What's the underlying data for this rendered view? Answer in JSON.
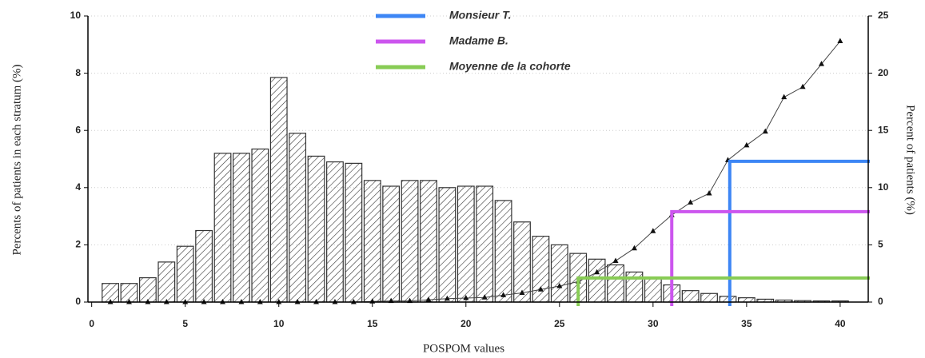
{
  "chart_data": {
    "type": "bar",
    "x_label": "POSPOM values",
    "y_label": "Percents of patients in each stratum (%)",
    "y2_label": "Percent of patients (%)",
    "x": [
      1,
      2,
      3,
      4,
      5,
      6,
      7,
      8,
      9,
      10,
      11,
      12,
      13,
      14,
      15,
      16,
      17,
      18,
      19,
      20,
      21,
      22,
      23,
      24,
      25,
      26,
      27,
      28,
      29,
      30,
      31,
      32,
      33,
      34,
      35,
      36,
      37,
      38,
      39,
      40
    ],
    "bars": {
      "color": "#333333",
      "values": [
        0.65,
        0.65,
        0.85,
        1.4,
        1.95,
        2.5,
        5.2,
        5.2,
        5.35,
        7.85,
        5.9,
        5.1,
        4.9,
        4.85,
        4.25,
        4.05,
        4.25,
        4.25,
        4.0,
        4.05,
        4.05,
        3.55,
        2.8,
        2.3,
        2.0,
        1.7,
        1.5,
        1.3,
        1.05,
        0.85,
        0.6,
        0.4,
        0.3,
        0.2,
        0.15,
        0.1,
        0.07,
        0.05,
        0.04,
        0.04
      ]
    },
    "line": {
      "axis": "y2",
      "color": "#444444",
      "values": [
        0,
        0,
        0,
        0,
        0,
        0,
        0,
        0,
        0,
        0,
        0,
        0,
        0,
        0,
        0.05,
        0.1,
        0.1,
        0.2,
        0.3,
        0.35,
        0.4,
        0.6,
        0.8,
        1.1,
        1.4,
        1.8,
        2.6,
        3.6,
        4.7,
        6.2,
        7.6,
        8.7,
        9.5,
        12.4,
        13.7,
        14.9,
        17.9,
        18.8,
        20.8,
        22.8
      ]
    },
    "reference_lines": [
      {
        "name": "Monsieur T.",
        "color": "#3d86f5",
        "x": 34.1,
        "value": 12.3,
        "axis": "y2"
      },
      {
        "name": "Madame B.",
        "color": "#cc55ee",
        "x": 31.0,
        "value": 7.9,
        "axis": "y2"
      },
      {
        "name": "Moyenne de la cohorte",
        "color": "#88cc55",
        "x": 26.0,
        "value": 2.1,
        "axis": "y2"
      }
    ],
    "xlim": [
      -0.2,
      41.5
    ],
    "xticks": [
      0,
      5,
      10,
      15,
      20,
      25,
      30,
      35,
      40
    ],
    "ylim": [
      0,
      10
    ],
    "yticks": [
      0,
      2,
      4,
      6,
      8,
      10
    ],
    "y2lim": [
      0,
      25
    ],
    "y2ticks": [
      0,
      5,
      10,
      15,
      20,
      25
    ],
    "grid": true,
    "legend": "top"
  }
}
